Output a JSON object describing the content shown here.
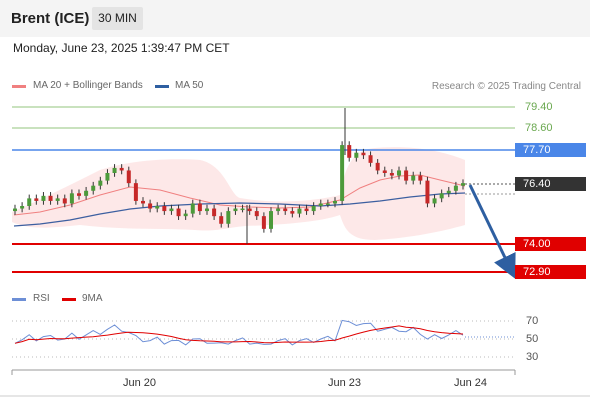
{
  "header": {
    "title": "Brent (ICE)",
    "timeframe": "30 MIN"
  },
  "datetime": "Monday, June 23, 2025 1:39:47 PM CET",
  "legend": {
    "bollinger": "MA 20 + Bollinger Bands",
    "ma50": "MA 50",
    "bollinger_color": "#f08080",
    "ma50_color": "#2e5fa1"
  },
  "credit": "Research © 2025 Trading Central",
  "levels": [
    {
      "label": "79.40",
      "kind": "resistance-minor",
      "color": "#93c47d"
    },
    {
      "label": "78.60",
      "kind": "resistance-minor",
      "color": "#93c47d"
    },
    {
      "label": "77.70",
      "kind": "pivot",
      "color": "#4a86e8"
    },
    {
      "label": "76.40",
      "kind": "last-price",
      "color": "#333333"
    },
    {
      "label": "74.00",
      "kind": "support",
      "color": "#e00000"
    },
    {
      "label": "72.90",
      "kind": "support",
      "color": "#e00000"
    }
  ],
  "oscillator": {
    "rsi": "RSI",
    "ma": "9MA",
    "rsi_color": "#6d8fd6",
    "ma_color": "#e00000",
    "levels": [
      "70",
      "50",
      "30"
    ]
  },
  "xaxis": {
    "labels": [
      "Jun 20",
      "Jun 23",
      "Jun 24"
    ]
  },
  "chart_data": {
    "type": "candlestick",
    "symbol": "Brent (ICE)",
    "interval": "30 MIN",
    "ylim": [
      72.9,
      79.4
    ],
    "key_levels": [
      79.4,
      78.6,
      77.7,
      76.4,
      74.0,
      72.9
    ],
    "last_price": 76.4,
    "close_series_approx": [
      75.4,
      75.5,
      75.8,
      75.7,
      75.9,
      75.7,
      75.8,
      75.6,
      76.0,
      75.9,
      76.1,
      76.3,
      76.5,
      76.8,
      77.0,
      76.9,
      76.4,
      75.7,
      75.6,
      75.4,
      75.5,
      75.3,
      75.4,
      75.1,
      75.2,
      75.6,
      75.3,
      75.4,
      75.1,
      74.8,
      75.3,
      75.4,
      75.4,
      75.3,
      75.1,
      74.6,
      75.3,
      75.4,
      75.3,
      75.2,
      75.4,
      75.3,
      75.5,
      75.6,
      75.6,
      75.7,
      77.9,
      77.4,
      77.6,
      77.5,
      77.2,
      76.9,
      76.8,
      76.7,
      76.9,
      76.5,
      76.7,
      76.5,
      75.6,
      75.8,
      76.0,
      76.1,
      76.3,
      76.4
    ],
    "forecast": {
      "direction": "down",
      "target": 72.9
    },
    "rsi_levels": [
      70,
      50,
      30
    ]
  }
}
